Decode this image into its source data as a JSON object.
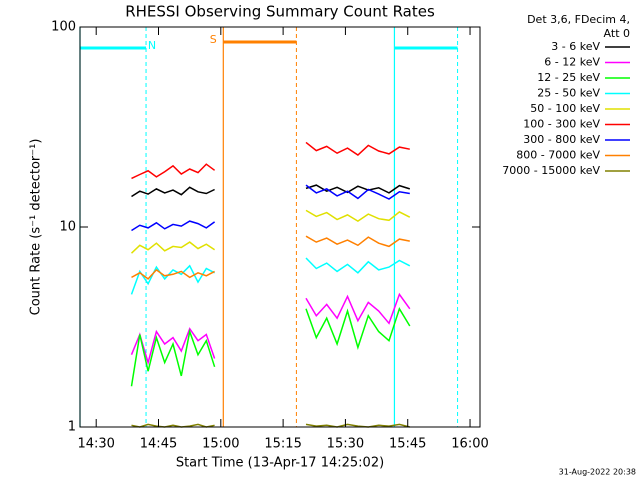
{
  "chart_data": {
    "type": "line",
    "title": "RHESSI Observing Summary Count Rates",
    "xlabel": "Start Time (13-Apr-17 14:25:02)",
    "ylabel": "Count Rate (s⁻¹ detector⁻¹)",
    "legend_header": [
      "Det 3,6, FDecim 4,",
      "Att 0"
    ],
    "timestamp": "31-Aug-2022 20:38",
    "log_y": true,
    "grid": false,
    "xlim": [
      26.1,
      122.4
    ],
    "xticks": [
      {
        "value": 30,
        "label": "14:30"
      },
      {
        "value": 45,
        "label": "14:45"
      },
      {
        "value": 60,
        "label": "15:00"
      },
      {
        "value": 75,
        "label": "15:15"
      },
      {
        "value": 90,
        "label": "15:30"
      },
      {
        "value": 105,
        "label": "15:45"
      },
      {
        "value": 120,
        "label": "16:00"
      }
    ],
    "ylim": [
      1,
      100
    ],
    "yticks": [
      1,
      10,
      100
    ],
    "flags": [
      {
        "label": "N",
        "color": "#00ffff",
        "start": 26.1,
        "end": 42
      },
      {
        "label": "S",
        "color": "#ff8000",
        "start": 60.6,
        "end": 78.2
      },
      {
        "color": "#00ffff",
        "start": 101.8,
        "end": 117
      }
    ],
    "x": [
      38.5,
      40.5,
      42.5,
      44.5,
      46.5,
      48.5,
      50.5,
      52.5,
      54.5,
      56.5,
      58.5,
      69,
      80.5,
      83,
      85.5,
      88,
      90.5,
      93,
      95.5,
      98,
      100.5,
      103,
      105.5
    ],
    "series": [
      {
        "name": "3 - 6 keV",
        "color": "#000000",
        "values": [
          14.2,
          15.1,
          14.6,
          15.5,
          14.8,
          15.3,
          14.5,
          15.8,
          15.0,
          14.7,
          15.4,
          null,
          15.6,
          16.2,
          15.1,
          15.8,
          14.9,
          16.0,
          15.3,
          15.7,
          14.8,
          16.1,
          15.5
        ]
      },
      {
        "name": "6 - 12 keV",
        "color": "#ff00ff",
        "values": [
          2.3,
          2.9,
          2.1,
          3.0,
          2.6,
          2.8,
          2.4,
          3.1,
          2.7,
          2.9,
          2.2,
          null,
          4.4,
          3.6,
          4.1,
          3.5,
          4.5,
          3.4,
          4.2,
          3.8,
          3.3,
          4.6,
          3.9
        ]
      },
      {
        "name": "12 - 25 keV",
        "color": "#00ff00",
        "values": [
          1.6,
          2.9,
          1.9,
          2.8,
          2.1,
          2.6,
          1.8,
          3.0,
          2.3,
          2.7,
          2.0,
          null,
          3.9,
          2.8,
          3.5,
          2.6,
          3.8,
          2.5,
          3.6,
          3.0,
          2.7,
          3.9,
          3.2
        ]
      },
      {
        "name": "25 - 50 keV",
        "color": "#00ffff",
        "values": [
          4.6,
          6.0,
          5.2,
          6.3,
          5.5,
          6.1,
          5.8,
          6.4,
          5.3,
          6.2,
          5.9,
          null,
          7.0,
          6.2,
          6.6,
          6.0,
          6.5,
          5.9,
          6.7,
          6.1,
          6.3,
          6.8,
          6.4
        ]
      },
      {
        "name": "50 - 100 keV",
        "color": "#e0e000",
        "values": [
          7.4,
          8.1,
          7.7,
          8.3,
          7.6,
          8.0,
          7.9,
          8.4,
          7.8,
          8.2,
          7.7,
          null,
          12.1,
          11.3,
          11.8,
          10.9,
          11.5,
          10.7,
          11.6,
          11.0,
          10.8,
          11.9,
          11.2
        ]
      },
      {
        "name": "100 - 300 keV",
        "color": "#ff0000",
        "values": [
          17.5,
          18.3,
          19.1,
          17.8,
          18.9,
          20.2,
          18.4,
          19.5,
          18.7,
          20.6,
          19.2,
          null,
          26.5,
          24.1,
          25.3,
          23.4,
          24.8,
          22.9,
          25.6,
          24.0,
          23.2,
          25.1,
          24.5
        ]
      },
      {
        "name": "300 - 800 keV",
        "color": "#0000ff",
        "values": [
          9.6,
          10.2,
          9.9,
          10.5,
          9.8,
          10.3,
          10.1,
          10.7,
          10.4,
          9.9,
          10.6,
          null,
          16.2,
          14.8,
          15.5,
          14.3,
          15.1,
          13.9,
          15.4,
          14.6,
          13.8,
          15.0,
          14.7
        ]
      },
      {
        "name": "800 - 7000 keV",
        "color": "#ff8000",
        "values": [
          5.6,
          5.9,
          5.5,
          6.1,
          5.7,
          5.8,
          6.0,
          5.6,
          5.9,
          5.7,
          6.0,
          null,
          9.0,
          8.4,
          8.8,
          8.2,
          8.6,
          8.1,
          8.9,
          8.3,
          8.0,
          8.7,
          8.5
        ]
      },
      {
        "name": "7000 - 15000 keV",
        "color": "#808000",
        "values": [
          1.02,
          1.0,
          1.03,
          1.01,
          1.0,
          1.02,
          1.0,
          1.01,
          1.03,
          1.0,
          1.02,
          null,
          1.03,
          1.01,
          1.02,
          1.0,
          1.03,
          1.01,
          1.0,
          1.02,
          1.01,
          1.03,
          1.0
        ]
      }
    ]
  }
}
